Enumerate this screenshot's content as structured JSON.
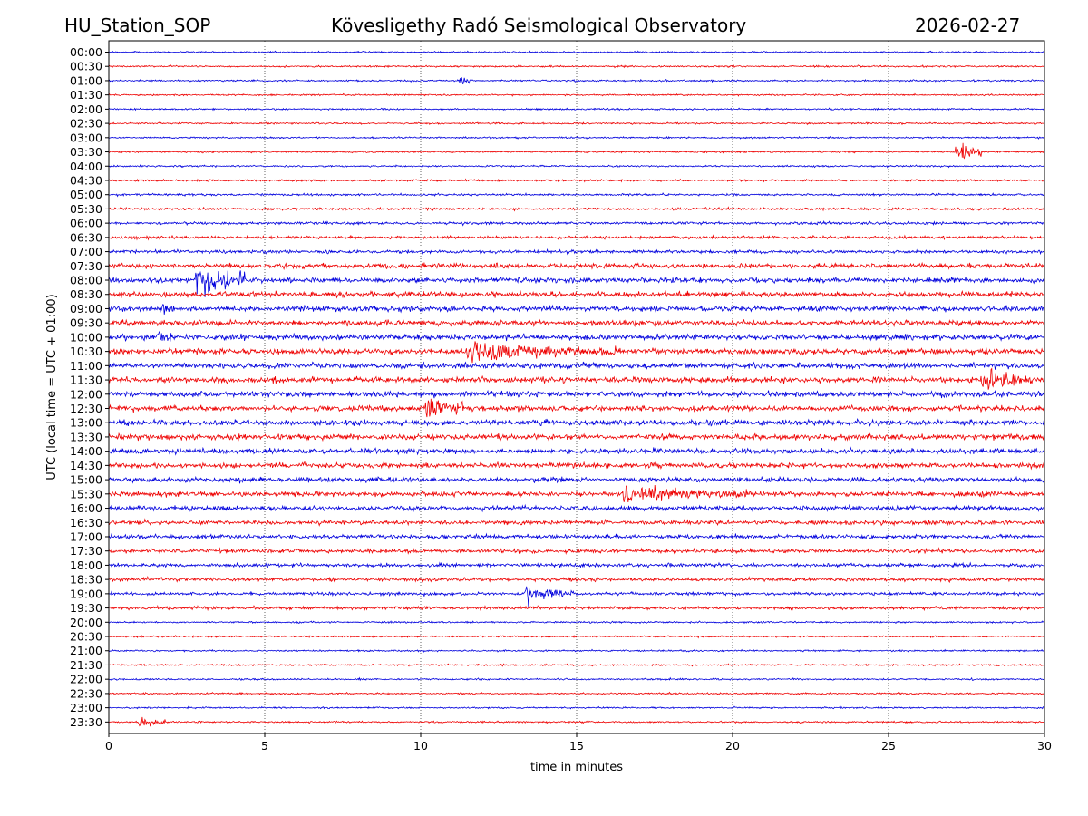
{
  "header": {
    "station": "HU_Station_SOP",
    "title": "Kövesligethy Radó Seismological Observatory",
    "date": "2026-02-27"
  },
  "chart_data": {
    "type": "line",
    "xlabel": "time in minutes",
    "ylabel": "UTC (local time = UTC + 01:00)",
    "xlim": [
      0,
      30
    ],
    "x_ticks": [
      "0",
      "5",
      "10",
      "15",
      "20",
      "25",
      "30"
    ],
    "x_grid": true,
    "rows": [
      "00:00",
      "00:30",
      "01:00",
      "01:30",
      "02:00",
      "02:30",
      "03:00",
      "03:30",
      "04:00",
      "04:30",
      "05:00",
      "05:30",
      "06:00",
      "06:30",
      "07:00",
      "07:30",
      "08:00",
      "08:30",
      "09:00",
      "09:30",
      "10:00",
      "10:30",
      "11:00",
      "11:30",
      "12:00",
      "12:30",
      "13:00",
      "13:30",
      "14:00",
      "14:30",
      "15:00",
      "15:30",
      "16:00",
      "16:30",
      "17:00",
      "17:30",
      "18:00",
      "18:30",
      "19:00",
      "19:30",
      "20:00",
      "20:30",
      "21:00",
      "21:30",
      "22:00",
      "22:30",
      "23:00",
      "23:30"
    ],
    "colors": [
      "#0000dd",
      "#ee0000"
    ],
    "events": [
      {
        "row": "01:00",
        "minute": 11.3,
        "duration": 0.3,
        "strength": 2
      },
      {
        "row": "03:30",
        "minute": 27.2,
        "duration": 0.8,
        "strength": 4
      },
      {
        "row": "08:00",
        "minute": 2.8,
        "duration": 1.6,
        "strength": 5
      },
      {
        "row": "09:00",
        "minute": 1.7,
        "duration": 0.4,
        "strength": 2
      },
      {
        "row": "10:00",
        "minute": 1.6,
        "duration": 0.4,
        "strength": 2
      },
      {
        "row": "10:30",
        "minute": 11.5,
        "duration": 5.0,
        "strength": 2.5
      },
      {
        "row": "11:30",
        "minute": 28.0,
        "duration": 1.6,
        "strength": 3
      },
      {
        "row": "12:30",
        "minute": 10.2,
        "duration": 1.2,
        "strength": 3
      },
      {
        "row": "15:30",
        "minute": 16.5,
        "duration": 4.0,
        "strength": 2
      },
      {
        "row": "19:00",
        "minute": 13.3,
        "duration": 1.6,
        "strength": 2.5
      },
      {
        "row": "23:30",
        "minute": 1.0,
        "duration": 0.8,
        "strength": 2
      }
    ]
  }
}
